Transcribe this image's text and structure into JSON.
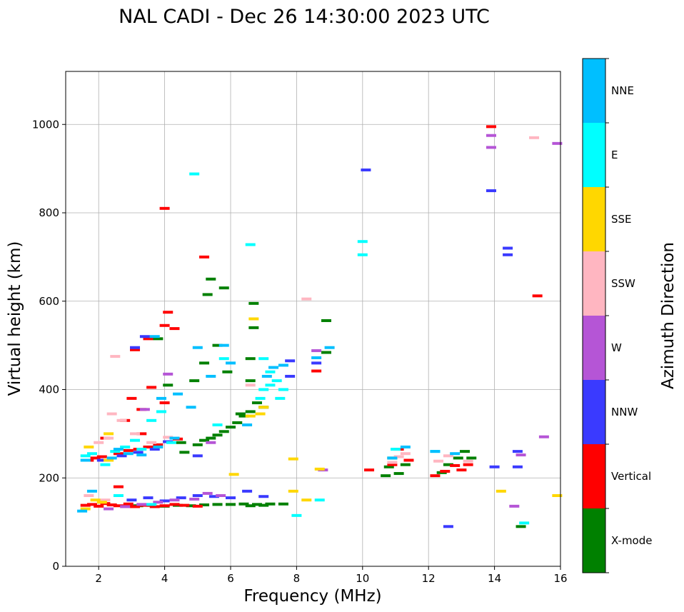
{
  "chart_data": {
    "type": "scatter",
    "title": "NAL CADI - Dec 26 14:30:00 2023 UTC",
    "xlabel": "Frequency (MHz)",
    "ylabel": "Virtual height (km)",
    "xlim": [
      1,
      16
    ],
    "ylim": [
      0,
      1120
    ],
    "xticks": [
      2,
      4,
      6,
      8,
      10,
      12,
      14,
      16
    ],
    "yticks": [
      0,
      200,
      400,
      600,
      800,
      1000
    ],
    "grid": true,
    "colorbar": {
      "label": "Azimuth Direction",
      "categories": [
        "X-mode",
        "Vertical",
        "NNW",
        "W",
        "SSW",
        "SSE",
        "E",
        "NNE"
      ],
      "colors": [
        "#008000",
        "#ff0000",
        "#3a3aff",
        "#b555d6",
        "#ffb6c1",
        "#ffd700",
        "#00ffff",
        "#00bfff"
      ]
    },
    "series": [
      {
        "name": "X-mode",
        "points": [
          [
            3.2,
            137
          ],
          [
            3.6,
            138
          ],
          [
            4.0,
            136
          ],
          [
            4.4,
            138
          ],
          [
            4.8,
            137
          ],
          [
            5.2,
            139
          ],
          [
            5.6,
            140
          ],
          [
            6.0,
            140
          ],
          [
            6.4,
            141
          ],
          [
            6.8,
            140
          ],
          [
            7.2,
            141
          ],
          [
            7.6,
            141
          ],
          [
            6.6,
            137
          ],
          [
            7.0,
            138
          ],
          [
            4.6,
            258
          ],
          [
            5.0,
            275
          ],
          [
            5.2,
            285
          ],
          [
            5.4,
            290
          ],
          [
            5.6,
            297
          ],
          [
            5.8,
            305
          ],
          [
            6.0,
            315
          ],
          [
            6.2,
            325
          ],
          [
            6.4,
            340
          ],
          [
            6.6,
            350
          ],
          [
            6.8,
            370
          ],
          [
            7.0,
            360
          ],
          [
            6.6,
            420
          ],
          [
            6.6,
            470
          ],
          [
            6.7,
            540
          ],
          [
            6.7,
            595
          ],
          [
            5.3,
            615
          ],
          [
            5.4,
            650
          ],
          [
            5.8,
            630
          ],
          [
            4.9,
            420
          ],
          [
            5.2,
            460
          ],
          [
            5.6,
            500
          ],
          [
            5.9,
            440
          ],
          [
            3.8,
            515
          ],
          [
            4.1,
            410
          ],
          [
            4.5,
            280
          ],
          [
            10.7,
            205
          ],
          [
            10.8,
            225
          ],
          [
            10.9,
            245
          ],
          [
            11.1,
            210
          ],
          [
            11.3,
            230
          ],
          [
            12.4,
            212
          ],
          [
            12.6,
            230
          ],
          [
            12.9,
            245
          ],
          [
            13.1,
            260
          ],
          [
            13.3,
            245
          ],
          [
            8.9,
            484
          ],
          [
            8.9,
            556
          ],
          [
            14.8,
            90
          ],
          [
            6.3,
            345
          ]
        ]
      },
      {
        "name": "Vertical",
        "points": [
          [
            1.6,
            138
          ],
          [
            1.8,
            140
          ],
          [
            2.0,
            136
          ],
          [
            2.2,
            142
          ],
          [
            2.4,
            139
          ],
          [
            2.6,
            137
          ],
          [
            2.9,
            141
          ],
          [
            3.1,
            135
          ],
          [
            3.4,
            138
          ],
          [
            3.7,
            135
          ],
          [
            4.0,
            137
          ],
          [
            4.3,
            140
          ],
          [
            4.6,
            138
          ],
          [
            5.0,
            136
          ],
          [
            1.7,
            240
          ],
          [
            1.9,
            245
          ],
          [
            2.1,
            248
          ],
          [
            2.3,
            240
          ],
          [
            2.6,
            255
          ],
          [
            2.9,
            262
          ],
          [
            3.2,
            265
          ],
          [
            3.5,
            270
          ],
          [
            3.8,
            275
          ],
          [
            4.1,
            282
          ],
          [
            4.4,
            288
          ],
          [
            3.0,
            380
          ],
          [
            3.3,
            355
          ],
          [
            4.0,
            370
          ],
          [
            3.6,
            405
          ],
          [
            3.1,
            490
          ],
          [
            3.5,
            515
          ],
          [
            4.0,
            545
          ],
          [
            4.1,
            575
          ],
          [
            4.3,
            538
          ],
          [
            2.2,
            290
          ],
          [
            2.6,
            180
          ],
          [
            4.0,
            810
          ],
          [
            5.2,
            700
          ],
          [
            8.6,
            442
          ],
          [
            10.2,
            218
          ],
          [
            10.9,
            230
          ],
          [
            11.1,
            265
          ],
          [
            11.4,
            240
          ],
          [
            12.2,
            205
          ],
          [
            12.5,
            215
          ],
          [
            12.8,
            228
          ],
          [
            13.0,
            218
          ],
          [
            13.2,
            230
          ],
          [
            15.3,
            612
          ],
          [
            13.9,
            995
          ],
          [
            2.8,
            330
          ],
          [
            3.3,
            300
          ]
        ]
      },
      {
        "name": "NNW",
        "points": [
          [
            3.0,
            150
          ],
          [
            3.5,
            155
          ],
          [
            4.0,
            148
          ],
          [
            4.5,
            155
          ],
          [
            5.0,
            160
          ],
          [
            5.5,
            158
          ],
          [
            6.0,
            155
          ],
          [
            6.5,
            170
          ],
          [
            7.0,
            158
          ],
          [
            2.1,
            240
          ],
          [
            2.7,
            250
          ],
          [
            3.2,
            258
          ],
          [
            3.7,
            265
          ],
          [
            4.1,
            282
          ],
          [
            3.4,
            520
          ],
          [
            7.8,
            430
          ],
          [
            7.8,
            465
          ],
          [
            10.1,
            897
          ],
          [
            8.6,
            460
          ],
          [
            14.0,
            225
          ],
          [
            14.7,
            225
          ],
          [
            14.7,
            260
          ],
          [
            12.6,
            90
          ],
          [
            13.9,
            850
          ],
          [
            14.4,
            720
          ],
          [
            14.4,
            705
          ],
          [
            5.0,
            250
          ],
          [
            3.1,
            495
          ]
        ]
      },
      {
        "name": "W",
        "points": [
          [
            2.3,
            130
          ],
          [
            2.8,
            135
          ],
          [
            3.3,
            140
          ],
          [
            3.8,
            145
          ],
          [
            4.3,
            150
          ],
          [
            4.9,
            152
          ],
          [
            5.3,
            165
          ],
          [
            5.7,
            160
          ],
          [
            8.6,
            488
          ],
          [
            8.8,
            218
          ],
          [
            13.9,
            975
          ],
          [
            13.9,
            948
          ],
          [
            15.5,
            293
          ],
          [
            14.8,
            252
          ],
          [
            14.6,
            136
          ],
          [
            15.9,
            957
          ],
          [
            5.4,
            280
          ],
          [
            3.4,
            355
          ],
          [
            4.1,
            435
          ]
        ]
      },
      {
        "name": "SSW",
        "points": [
          [
            2.0,
            280
          ],
          [
            2.3,
            290
          ],
          [
            2.4,
            345
          ],
          [
            2.7,
            330
          ],
          [
            3.1,
            300
          ],
          [
            3.6,
            280
          ],
          [
            2.5,
            475
          ],
          [
            10.9,
            235
          ],
          [
            11.1,
            248
          ],
          [
            11.3,
            255
          ],
          [
            12.3,
            238
          ],
          [
            12.6,
            250
          ],
          [
            13.2,
            238
          ],
          [
            8.3,
            605
          ],
          [
            15.2,
            970
          ],
          [
            1.7,
            160
          ],
          [
            2.2,
            150
          ],
          [
            6.6,
            410
          ],
          [
            4.1,
            292
          ]
        ]
      },
      {
        "name": "SSE",
        "points": [
          [
            1.6,
            130
          ],
          [
            1.9,
            150
          ],
          [
            2.1,
            145
          ],
          [
            2.3,
            300
          ],
          [
            1.7,
            270
          ],
          [
            2.3,
            240
          ],
          [
            6.6,
            340
          ],
          [
            6.9,
            345
          ],
          [
            7.0,
            360
          ],
          [
            7.9,
            170
          ],
          [
            8.3,
            150
          ],
          [
            8.7,
            220
          ],
          [
            14.2,
            170
          ],
          [
            15.9,
            160
          ],
          [
            7.9,
            243
          ],
          [
            6.1,
            208
          ],
          [
            6.7,
            560
          ]
        ]
      },
      {
        "name": "E",
        "points": [
          [
            1.6,
            250
          ],
          [
            1.8,
            255
          ],
          [
            2.2,
            230
          ],
          [
            2.5,
            260
          ],
          [
            2.8,
            270
          ],
          [
            3.1,
            285
          ],
          [
            3.3,
            265
          ],
          [
            3.6,
            330
          ],
          [
            3.9,
            350
          ],
          [
            4.2,
            280
          ],
          [
            7.0,
            400
          ],
          [
            7.2,
            410
          ],
          [
            7.4,
            420
          ],
          [
            7.6,
            400
          ],
          [
            7.2,
            440
          ],
          [
            7.0,
            470
          ],
          [
            6.9,
            380
          ],
          [
            7.5,
            380
          ],
          [
            8.7,
            150
          ],
          [
            8.0,
            115
          ],
          [
            10.0,
            735
          ],
          [
            10.0,
            705
          ],
          [
            6.6,
            728
          ],
          [
            4.9,
            888
          ],
          [
            11.0,
            265
          ],
          [
            12.2,
            260
          ],
          [
            14.9,
            98
          ],
          [
            2.6,
            160
          ],
          [
            3.6,
            140
          ],
          [
            5.6,
            320
          ],
          [
            5.8,
            470
          ]
        ]
      },
      {
        "name": "NNE",
        "points": [
          [
            1.6,
            240
          ],
          [
            1.8,
            170
          ],
          [
            2.4,
            245
          ],
          [
            2.9,
            255
          ],
          [
            3.3,
            252
          ],
          [
            3.8,
            270
          ],
          [
            4.3,
            290
          ],
          [
            3.7,
            520
          ],
          [
            4.4,
            390
          ],
          [
            5.0,
            495
          ],
          [
            5.4,
            430
          ],
          [
            5.8,
            500
          ],
          [
            6.0,
            460
          ],
          [
            7.1,
            430
          ],
          [
            7.3,
            450
          ],
          [
            7.6,
            455
          ],
          [
            8.6,
            472
          ],
          [
            9.0,
            495
          ],
          [
            10.9,
            245
          ],
          [
            11.3,
            270
          ],
          [
            12.2,
            260
          ],
          [
            12.8,
            255
          ],
          [
            1.5,
            125
          ],
          [
            2.6,
            265
          ],
          [
            3.9,
            380
          ],
          [
            6.5,
            320
          ],
          [
            4.8,
            360
          ]
        ]
      }
    ]
  }
}
